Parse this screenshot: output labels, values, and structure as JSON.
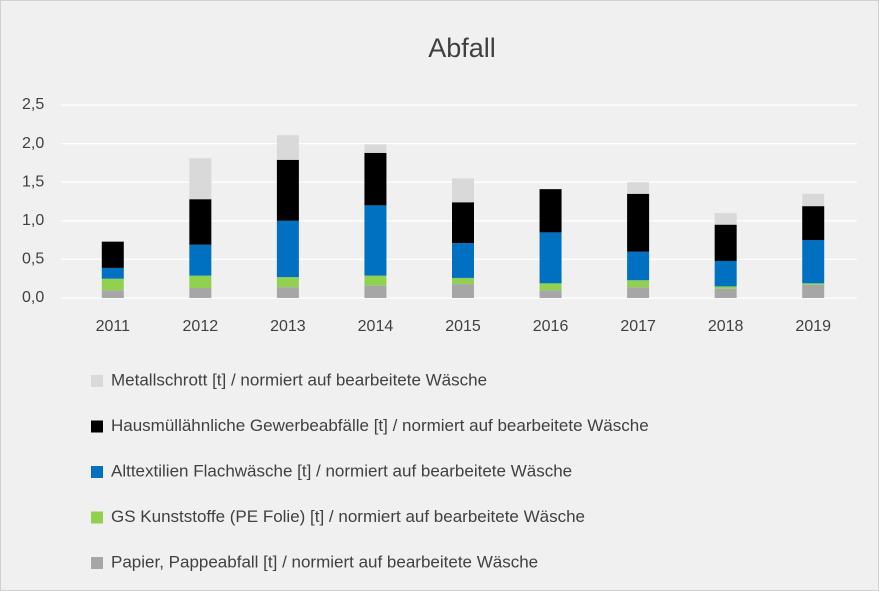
{
  "chart_data": {
    "type": "bar",
    "stacked": true,
    "title": "Abfall",
    "categories": [
      "2011",
      "2012",
      "2013",
      "2014",
      "2015",
      "2016",
      "2017",
      "2018",
      "2019"
    ],
    "series": [
      {
        "name": "Papier, Pappeabfall [t] / normiert auf bearbeitete Wäsche",
        "color": "#a6a6a6",
        "values": [
          0.1,
          0.13,
          0.14,
          0.16,
          0.18,
          0.1,
          0.14,
          0.12,
          0.17
        ]
      },
      {
        "name": "GS Kunststoffe (PE Folie) [t] / normiert auf bearbeitete Wäsche",
        "color": "#92d050",
        "values": [
          0.15,
          0.16,
          0.13,
          0.13,
          0.08,
          0.09,
          0.09,
          0.03,
          0.02
        ]
      },
      {
        "name": "Alttextilien Flachwäsche [t] / normiert auf bearbeitete Wäsche",
        "color": "#0070c0",
        "values": [
          0.14,
          0.4,
          0.73,
          0.91,
          0.45,
          0.66,
          0.37,
          0.33,
          0.56
        ]
      },
      {
        "name": "Hausmüllähnliche Gewerbeabfälle [t] / normiert auf bearbeitete Wäsche",
        "color": "#000000",
        "values": [
          0.34,
          0.59,
          0.79,
          0.68,
          0.53,
          0.56,
          0.75,
          0.47,
          0.44
        ]
      },
      {
        "name": "Metallschrott [t] / normiert auf bearbeitete Wäsche",
        "color": "#d9d9d9",
        "values": [
          0,
          0.53,
          0.32,
          0.11,
          0.31,
          0,
          0.15,
          0.15,
          0.16
        ]
      }
    ],
    "ylim": [
      0,
      2.5
    ],
    "yticks": [
      {
        "value": 0,
        "label": "0,0"
      },
      {
        "value": 0.5,
        "label": "0,5"
      },
      {
        "value": 1,
        "label": "1,0"
      },
      {
        "value": 1.5,
        "label": "1,5"
      },
      {
        "value": 2,
        "label": "2,0"
      },
      {
        "value": 2.5,
        "label": "2,5"
      }
    ],
    "grid": true,
    "legend": "bottom"
  }
}
